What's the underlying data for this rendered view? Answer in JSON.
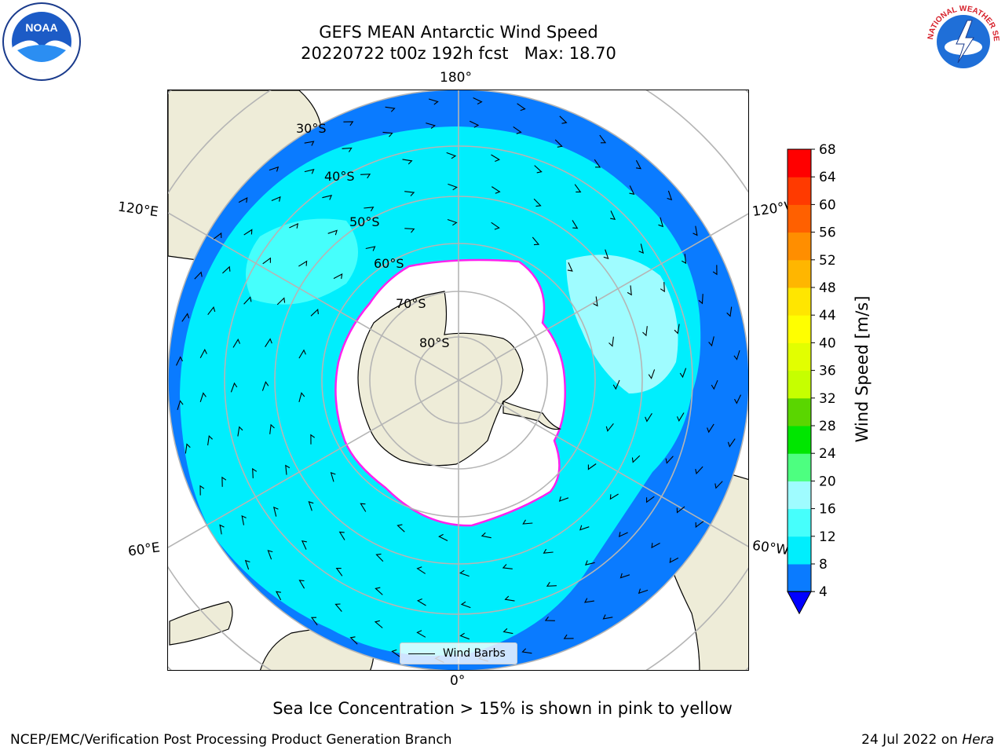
{
  "title": {
    "line1": "GEFS MEAN Antarctic Wind Speed",
    "line2": "20220722 t00z 192h fcst   Max: 18.70"
  },
  "logos": [
    {
      "name": "noaa-logo",
      "icon": "noaa-seagull-emblem",
      "text": "NOAA"
    },
    {
      "name": "nws-logo",
      "icon": "national-weather-service-emblem",
      "text": "NATIONAL WEATHER SERVICE"
    }
  ],
  "map": {
    "projection": "south-polar-stereographic",
    "longitude_labels": {
      "top": "180°",
      "bottom": "0°",
      "upper_left": "120°E",
      "upper_right": "120°W",
      "lower_left": "60°E",
      "lower_right": "60°W"
    },
    "latitude_labels": [
      "30°S",
      "40°S",
      "50°S",
      "60°S",
      "70°S",
      "80°S"
    ],
    "legend": {
      "label": "Wind Barbs"
    },
    "colors": {
      "land": "#eeecd8",
      "ice": "#ffffff",
      "ocean_low": "#0a7bff",
      "ocean_mid": "#00eefd",
      "ocean_high": "#9ffcff",
      "ice_edge": "#ff22ee"
    }
  },
  "colorbar": {
    "label": "Wind Speed [m/s]",
    "ticks": [
      "4",
      "8",
      "12",
      "16",
      "20",
      "24",
      "28",
      "32",
      "36",
      "40",
      "44",
      "48",
      "52",
      "56",
      "60",
      "64",
      "68"
    ],
    "colors": [
      "#0a7bff",
      "#00eefd",
      "#46fffc",
      "#9ffcff",
      "#4dff80",
      "#00e600",
      "#5ad600",
      "#c6ff00",
      "#e2ff00",
      "#ffff00",
      "#ffe600",
      "#ffb600",
      "#ff8e00",
      "#ff6000",
      "#ff3a00",
      "#ff0000"
    ],
    "extend_below_color": "#0000ff"
  },
  "footer": {
    "ice_note": "Sea Ice Concentration > 15% is shown in pink to yellow",
    "branch": "NCEP/EMC/Verification Post Processing Product Generation Branch",
    "date_prefix": "24 Jul 2022 on ",
    "machine": "Hera"
  }
}
